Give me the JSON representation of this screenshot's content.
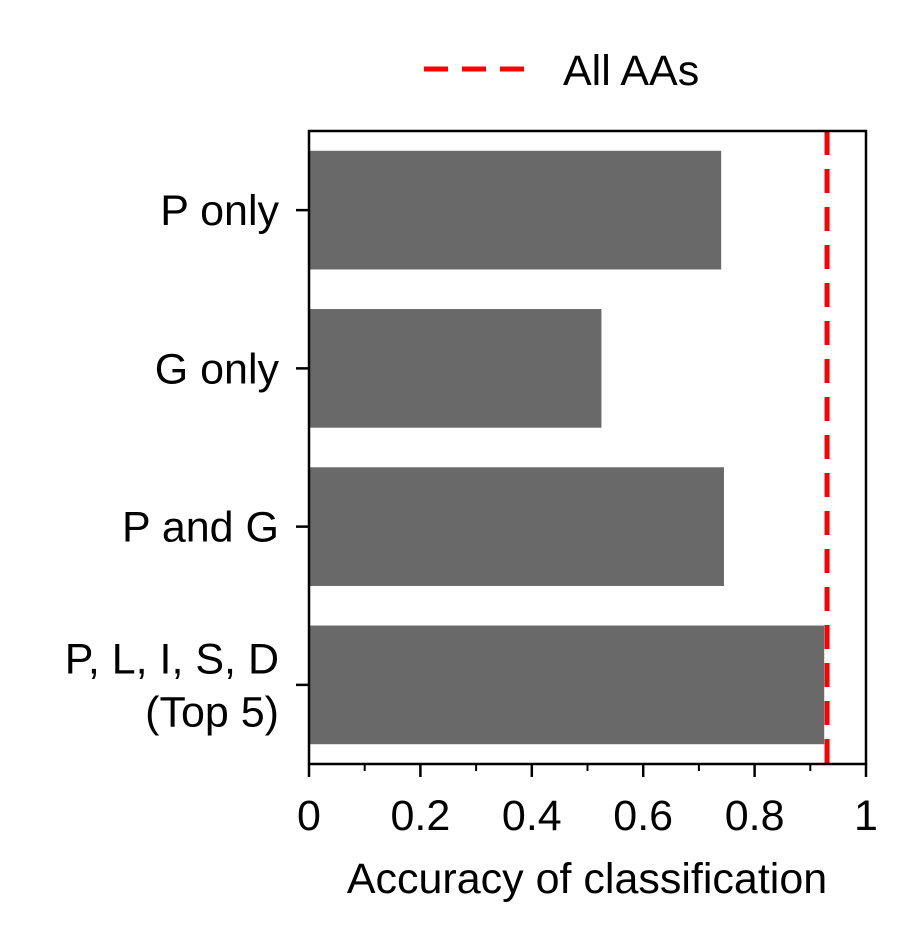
{
  "chart_data": {
    "type": "bar",
    "orientation": "horizontal",
    "categories": [
      "P only",
      "G only",
      "P and G",
      "P, L, I, S, D\n(Top 5)"
    ],
    "values": [
      0.74,
      0.525,
      0.745,
      0.925
    ],
    "reference_line": {
      "label": "All AAs",
      "value": 0.93,
      "style": "dashed",
      "color": "#ff0000"
    },
    "xlabel": "Accuracy of classification",
    "ylabel": "",
    "title": "",
    "xlim": [
      0,
      1
    ],
    "xticks": [
      0,
      0.2,
      0.4,
      0.6,
      0.8,
      1
    ],
    "xtick_labels": [
      "0",
      "0.2",
      "0.4",
      "0.6",
      "0.8",
      "1"
    ],
    "legend_position": "top-center",
    "grid": false,
    "bar_color": "#696969"
  }
}
